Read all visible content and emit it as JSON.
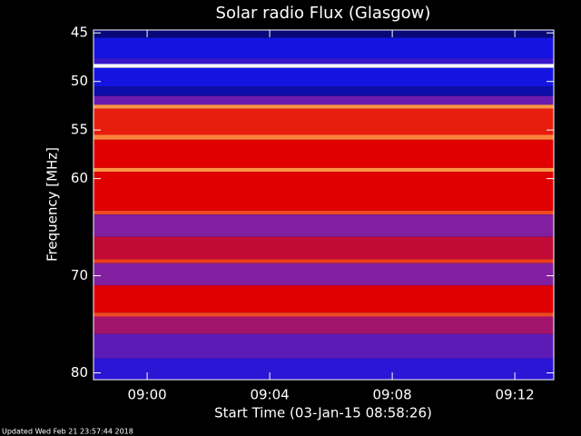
{
  "chart_data": {
    "type": "heatmap",
    "title": "Solar radio Flux (Glasgow)",
    "y_label": "Frequency [MHz]",
    "x_label": "Start Time (03-Jan-15 08:58:26)",
    "footer": "Updated Wed Feb 21 23:57:44 2018",
    "xlim": [
      -1.75,
      13.27
    ],
    "xticks": [
      {
        "value": 0,
        "label": "09:00"
      },
      {
        "value": 4,
        "label": "09:04"
      },
      {
        "value": 8,
        "label": "09:08"
      },
      {
        "value": 12,
        "label": "09:12"
      }
    ],
    "ylim": [
      44.7,
      80.7
    ],
    "yticks": [
      45,
      50,
      55,
      60,
      70,
      80
    ],
    "y_reversed": true,
    "bands": [
      {
        "from": 44.7,
        "to": 45.5,
        "level": 0.12
      },
      {
        "from": 45.5,
        "to": 47.6,
        "level": 0.3
      },
      {
        "from": 47.6,
        "to": 48.2,
        "level": 0.35
      },
      {
        "from": 48.2,
        "to": 48.6,
        "level": 1.0
      },
      {
        "from": 48.6,
        "to": 50.5,
        "level": 0.3
      },
      {
        "from": 50.5,
        "to": 51.5,
        "level": 0.2
      },
      {
        "from": 51.5,
        "to": 52.4,
        "level": 0.42
      },
      {
        "from": 52.4,
        "to": 52.8,
        "level": 0.85
      },
      {
        "from": 52.8,
        "to": 55.5,
        "level": 0.65
      },
      {
        "from": 55.5,
        "to": 56.0,
        "level": 0.82
      },
      {
        "from": 56.0,
        "to": 58.9,
        "level": 0.6
      },
      {
        "from": 58.9,
        "to": 59.3,
        "level": 0.85
      },
      {
        "from": 59.3,
        "to": 63.3,
        "level": 0.6
      },
      {
        "from": 63.3,
        "to": 63.7,
        "level": 0.72
      },
      {
        "from": 63.7,
        "to": 66.0,
        "level": 0.45
      },
      {
        "from": 66.0,
        "to": 68.3,
        "level": 0.55
      },
      {
        "from": 68.3,
        "to": 68.7,
        "level": 0.7
      },
      {
        "from": 68.7,
        "to": 71.0,
        "level": 0.45
      },
      {
        "from": 71.0,
        "to": 73.8,
        "level": 0.6
      },
      {
        "from": 73.8,
        "to": 74.2,
        "level": 0.72
      },
      {
        "from": 74.2,
        "to": 76.0,
        "level": 0.5
      },
      {
        "from": 76.0,
        "to": 78.5,
        "level": 0.4
      },
      {
        "from": 78.5,
        "to": 80.7,
        "level": 0.33
      }
    ]
  }
}
